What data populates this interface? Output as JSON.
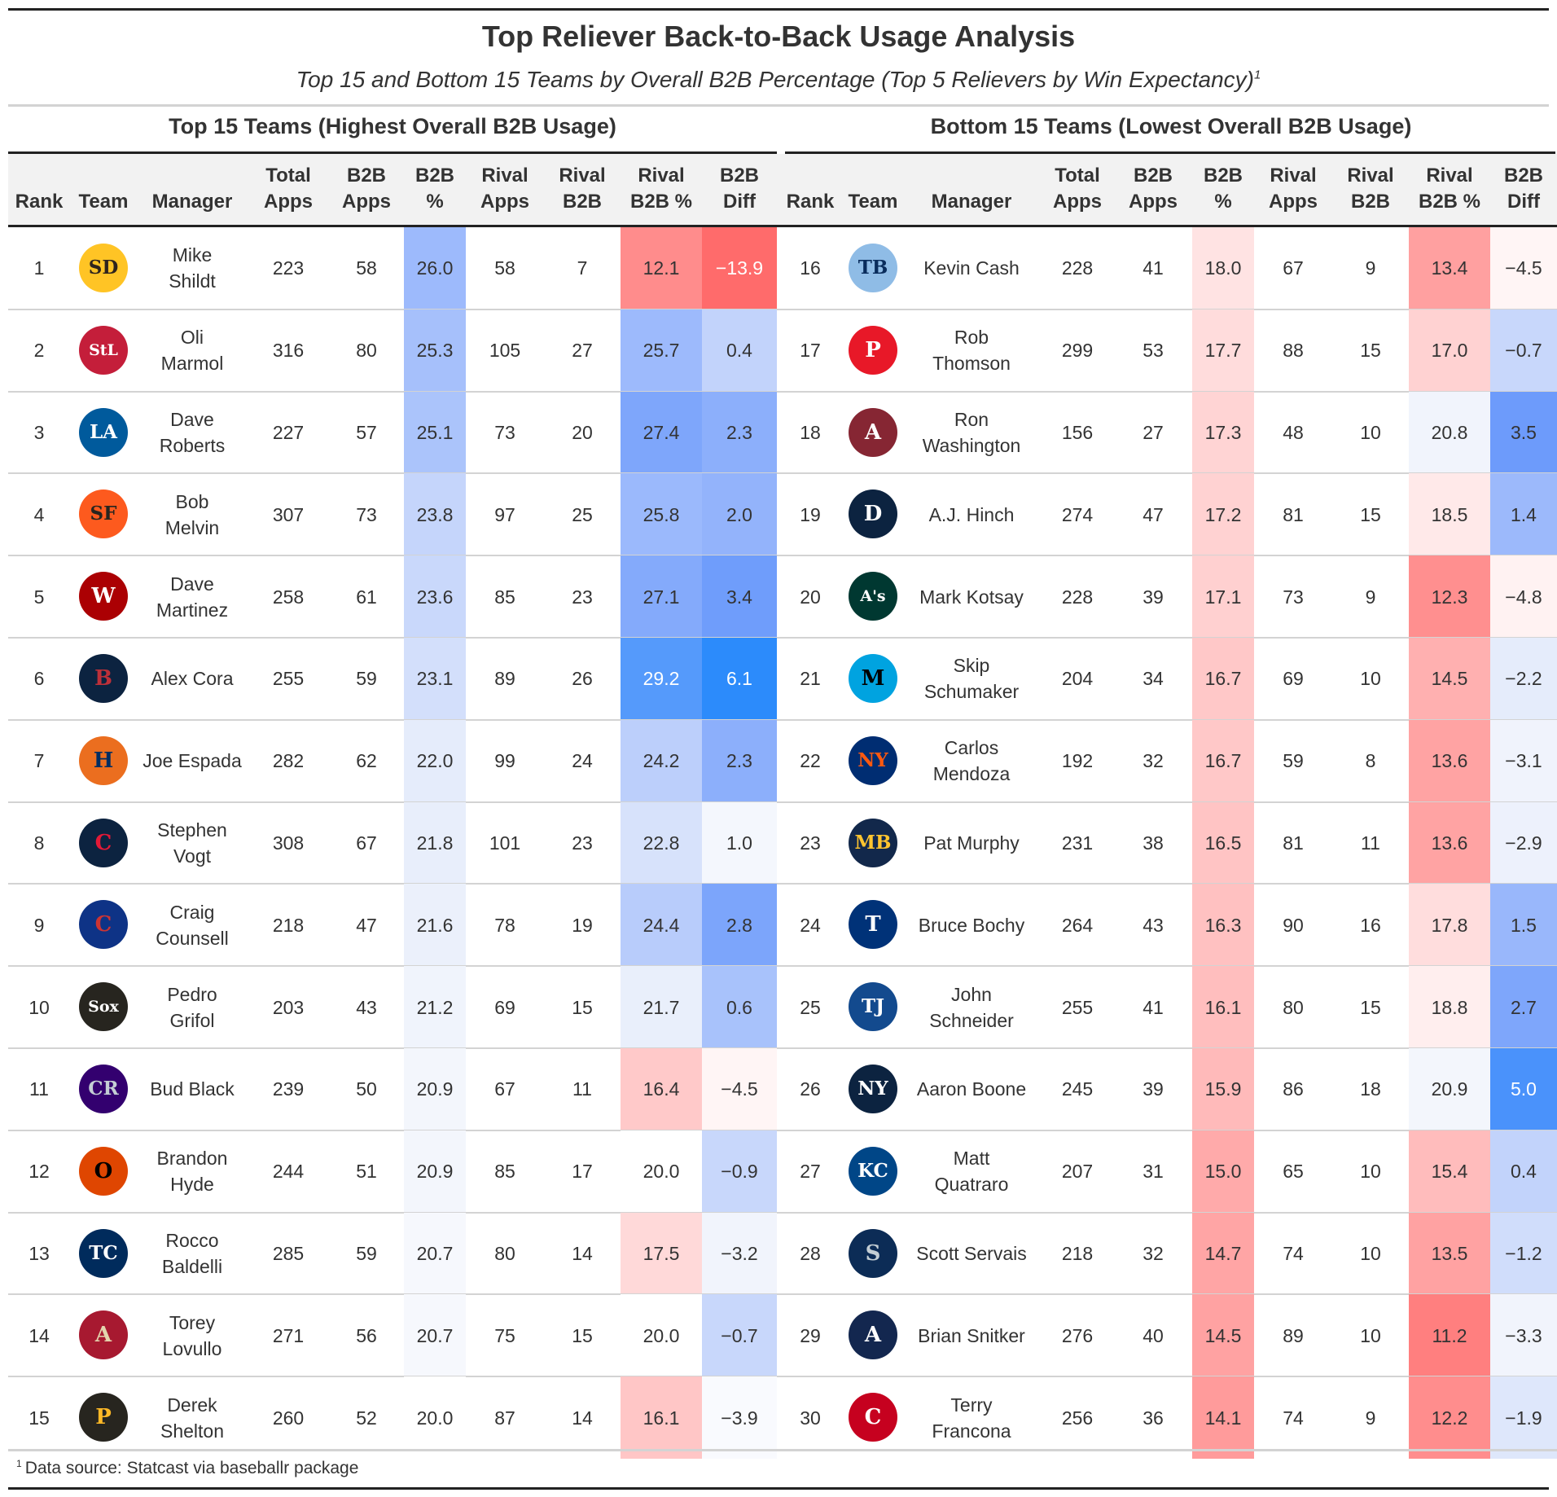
{
  "title": "Top Reliever Back-to-Back Usage Analysis",
  "subtitle": "Top 15 and Bottom 15 Teams by Overall B2B Percentage (Top 5 Relievers by Win Expectancy)",
  "subtitle_footnote_mark": "1",
  "footnote_mark": "1",
  "footnote": "Data source: Statcast via baseballr package",
  "left_spanner": "Top 15 Teams (Highest Overall B2B Usage)",
  "right_spanner": "Bottom 15 Teams (Lowest Overall B2B Usage)",
  "columns": [
    "Rank",
    "Team",
    "Manager",
    "Total Apps",
    "B2B Apps",
    "B2B %",
    "Rival Apps",
    "Rival B2B",
    "Rival B2B %",
    "B2B Diff"
  ],
  "column_headers": [
    {
      "line1": "",
      "line2": "Rank"
    },
    {
      "line1": "",
      "line2": "Team"
    },
    {
      "line1": "",
      "line2": "Manager"
    },
    {
      "line1": "Total",
      "line2": "Apps"
    },
    {
      "line1": "B2B",
      "line2": "Apps"
    },
    {
      "line1": "B2B",
      "line2": "%"
    },
    {
      "line1": "Rival",
      "line2": "Apps"
    },
    {
      "line1": "Rival",
      "line2": "B2B"
    },
    {
      "line1": "Rival",
      "line2": "B2B %"
    },
    {
      "line1": "B2B",
      "line2": "Diff"
    }
  ],
  "top_teams": [
    {
      "rank": "1",
      "logo": {
        "icon": "padres-logo",
        "text": "SD",
        "bg": "#FFC425",
        "fg": "#2F241D"
      },
      "manager": [
        "Mike",
        "Shildt"
      ],
      "total_apps": "223",
      "b2b_apps": "58",
      "b2b_pct": "26.0",
      "rival_apps": "58",
      "rival_b2b": "7",
      "rival_b2b_pct": "12.1",
      "b2b_diff": "−13.9",
      "b2b_pct_color": "#9DBAFC",
      "rival_pct_color": "#FF8C8C",
      "diff_color": "#FF6B6B"
    },
    {
      "rank": "2",
      "logo": {
        "icon": "cardinals-logo",
        "text": "StL",
        "bg": "#C41E3A",
        "fg": "#ffffff"
      },
      "manager": [
        "Oli",
        "Marmol"
      ],
      "total_apps": "316",
      "b2b_apps": "80",
      "b2b_pct": "25.3",
      "rival_apps": "105",
      "rival_b2b": "27",
      "rival_b2b_pct": "25.7",
      "b2b_diff": "0.4",
      "b2b_pct_color": "#A6C0FB",
      "rival_pct_color": "#9DBAFC",
      "diff_color": "#C2D3FB"
    },
    {
      "rank": "3",
      "logo": {
        "icon": "dodgers-logo",
        "text": "LA",
        "bg": "#005A9C",
        "fg": "#ffffff"
      },
      "manager": [
        "Dave",
        "Roberts"
      ],
      "total_apps": "227",
      "b2b_apps": "57",
      "b2b_pct": "25.1",
      "rival_apps": "73",
      "rival_b2b": "20",
      "rival_b2b_pct": "27.4",
      "b2b_diff": "2.3",
      "b2b_pct_color": "#ABC4FB",
      "rival_pct_color": "#7EA6FB",
      "diff_color": "#8CAFFB"
    },
    {
      "rank": "4",
      "logo": {
        "icon": "giants-logo",
        "text": "SF",
        "bg": "#FD5A1E",
        "fg": "#27251F"
      },
      "manager": [
        "Bob",
        "Melvin"
      ],
      "total_apps": "307",
      "b2b_apps": "73",
      "b2b_pct": "23.8",
      "rival_apps": "97",
      "rival_b2b": "25",
      "rival_b2b_pct": "25.8",
      "b2b_diff": "2.0",
      "b2b_pct_color": "#C5D5FB",
      "rival_pct_color": "#9BB9FC",
      "diff_color": "#93B3FB"
    },
    {
      "rank": "5",
      "logo": {
        "icon": "nationals-logo",
        "text": "W",
        "bg": "#AB0003",
        "fg": "#ffffff"
      },
      "manager": [
        "Dave",
        "Martinez"
      ],
      "total_apps": "258",
      "b2b_apps": "61",
      "b2b_pct": "23.6",
      "rival_apps": "85",
      "rival_b2b": "23",
      "rival_b2b_pct": "27.1",
      "b2b_diff": "3.4",
      "b2b_pct_color": "#C9D8FB",
      "rival_pct_color": "#84AAFB",
      "diff_color": "#6F9DFB"
    },
    {
      "rank": "6",
      "logo": {
        "icon": "red-sox-logo",
        "text": "B",
        "bg": "#0C2340",
        "fg": "#BD3039"
      },
      "manager": [
        "Alex Cora"
      ],
      "total_apps": "255",
      "b2b_apps": "59",
      "b2b_pct": "23.1",
      "rival_apps": "89",
      "rival_b2b": "26",
      "rival_b2b_pct": "29.2",
      "b2b_diff": "6.1",
      "b2b_pct_color": "#D3DFFB",
      "rival_pct_color": "#559AFB",
      "diff_color": "#2C8BFB"
    },
    {
      "rank": "7",
      "logo": {
        "icon": "astros-logo",
        "text": "H",
        "bg": "#EB6E1F",
        "fg": "#002D62"
      },
      "manager": [
        "Joe Espada"
      ],
      "total_apps": "282",
      "b2b_apps": "62",
      "b2b_pct": "22.0",
      "rival_apps": "99",
      "rival_b2b": "24",
      "rival_b2b_pct": "24.2",
      "b2b_diff": "2.3",
      "b2b_pct_color": "#E5ECFB",
      "rival_pct_color": "#BCCFFB",
      "diff_color": "#8CAFFB"
    },
    {
      "rank": "8",
      "logo": {
        "icon": "guardians-logo",
        "text": "C",
        "bg": "#0C2340",
        "fg": "#E31937"
      },
      "manager": [
        "Stephen",
        "Vogt"
      ],
      "total_apps": "308",
      "b2b_apps": "67",
      "b2b_pct": "21.8",
      "rival_apps": "101",
      "rival_b2b": "23",
      "rival_b2b_pct": "22.8",
      "b2b_diff": "1.0",
      "b2b_pct_color": "#E8EEFB",
      "rival_pct_color": "#D7E2FB",
      "diff_color": "#F4F7FD"
    },
    {
      "rank": "9",
      "logo": {
        "icon": "cubs-logo",
        "text": "C",
        "bg": "#0E3386",
        "fg": "#CC3433"
      },
      "manager": [
        "Craig",
        "Counsell"
      ],
      "total_apps": "218",
      "b2b_apps": "47",
      "b2b_pct": "21.6",
      "rival_apps": "78",
      "rival_b2b": "19",
      "rival_b2b_pct": "24.4",
      "b2b_diff": "2.8",
      "b2b_pct_color": "#EBF0FB",
      "rival_pct_color": "#B8CCFB",
      "diff_color": "#7CA5FB"
    },
    {
      "rank": "10",
      "logo": {
        "icon": "white-sox-logo",
        "text": "Sox",
        "bg": "#27251F",
        "fg": "#ffffff"
      },
      "manager": [
        "Pedro",
        "Grifol"
      ],
      "total_apps": "203",
      "b2b_apps": "43",
      "b2b_pct": "21.2",
      "rival_apps": "69",
      "rival_b2b": "15",
      "rival_b2b_pct": "21.7",
      "b2b_diff": "0.6",
      "b2b_pct_color": "#F0F4FC",
      "rival_pct_color": "#E9EFFB",
      "diff_color": "#A8C2FB"
    },
    {
      "rank": "11",
      "logo": {
        "icon": "rockies-logo",
        "text": "CR",
        "bg": "#33006F",
        "fg": "#C4CED4"
      },
      "manager": [
        "Bud Black"
      ],
      "total_apps": "239",
      "b2b_apps": "50",
      "b2b_pct": "20.9",
      "rival_apps": "67",
      "rival_b2b": "11",
      "rival_b2b_pct": "16.4",
      "b2b_diff": "−4.5",
      "b2b_pct_color": "#F3F6FC",
      "rival_pct_color": "#FFC9C9",
      "diff_color": "#FFF5F5"
    },
    {
      "rank": "12",
      "logo": {
        "icon": "orioles-logo",
        "text": "O",
        "bg": "#DF4601",
        "fg": "#000000"
      },
      "manager": [
        "Brandon",
        "Hyde"
      ],
      "total_apps": "244",
      "b2b_apps": "51",
      "b2b_pct": "20.9",
      "rival_apps": "85",
      "rival_b2b": "17",
      "rival_b2b_pct": "20.0",
      "b2b_diff": "−0.9",
      "b2b_pct_color": "#F3F6FC",
      "rival_pct_color": "#FFFFFF",
      "diff_color": "#C8D7FB"
    },
    {
      "rank": "13",
      "logo": {
        "icon": "twins-logo",
        "text": "TC",
        "bg": "#002B5C",
        "fg": "#ffffff"
      },
      "manager": [
        "Rocco",
        "Baldelli"
      ],
      "total_apps": "285",
      "b2b_apps": "59",
      "b2b_pct": "20.7",
      "rival_apps": "80",
      "rival_b2b": "14",
      "rival_b2b_pct": "17.5",
      "b2b_diff": "−3.2",
      "b2b_pct_color": "#F6F8FD",
      "rival_pct_color": "#FFD9D9",
      "diff_color": "#F1F4FC"
    },
    {
      "rank": "14",
      "logo": {
        "icon": "diamondbacks-logo",
        "text": "A",
        "bg": "#A71930",
        "fg": "#E3D4AD"
      },
      "manager": [
        "Torey",
        "Lovullo"
      ],
      "total_apps": "271",
      "b2b_apps": "56",
      "b2b_pct": "20.7",
      "rival_apps": "75",
      "rival_b2b": "15",
      "rival_b2b_pct": "20.0",
      "b2b_diff": "−0.7",
      "b2b_pct_color": "#F6F8FD",
      "rival_pct_color": "#FFFFFF",
      "diff_color": "#C8D7FB"
    },
    {
      "rank": "15",
      "logo": {
        "icon": "pirates-logo",
        "text": "P",
        "bg": "#27251F",
        "fg": "#FDB827"
      },
      "manager": [
        "Derek",
        "Shelton"
      ],
      "total_apps": "260",
      "b2b_apps": "52",
      "b2b_pct": "20.0",
      "rival_apps": "87",
      "rival_b2b": "14",
      "rival_b2b_pct": "16.1",
      "b2b_diff": "−3.9",
      "b2b_pct_color": "#FFFFFF",
      "rival_pct_color": "#FFC6C6",
      "diff_color": "#F9FAFE"
    }
  ],
  "bottom_teams": [
    {
      "rank": "16",
      "logo": {
        "icon": "rays-logo",
        "text": "TB",
        "bg": "#8FBCE6",
        "fg": "#092C5C"
      },
      "manager": [
        "Kevin Cash"
      ],
      "total_apps": "228",
      "b2b_apps": "41",
      "b2b_pct": "18.0",
      "rival_apps": "67",
      "rival_b2b": "9",
      "rival_b2b_pct": "13.4",
      "b2b_diff": "−4.5",
      "b2b_pct_color": "#FFE3E3",
      "rival_pct_color": "#FFA0A0",
      "diff_color": "#FFF5F5"
    },
    {
      "rank": "17",
      "logo": {
        "icon": "phillies-logo",
        "text": "P",
        "bg": "#E81828",
        "fg": "#ffffff"
      },
      "manager": [
        "Rob",
        "Thomson"
      ],
      "total_apps": "299",
      "b2b_apps": "53",
      "b2b_pct": "17.7",
      "rival_apps": "88",
      "rival_b2b": "15",
      "rival_b2b_pct": "17.0",
      "b2b_diff": "−0.7",
      "b2b_pct_color": "#FFDCDC",
      "rival_pct_color": "#FFD2D2",
      "diff_color": "#C8D7FB"
    },
    {
      "rank": "18",
      "logo": {
        "icon": "angels-logo",
        "text": "A",
        "bg": "#862633",
        "fg": "#ffffff"
      },
      "manager": [
        "Ron",
        "Washington"
      ],
      "total_apps": "156",
      "b2b_apps": "27",
      "b2b_pct": "17.3",
      "rival_apps": "48",
      "rival_b2b": "10",
      "rival_b2b_pct": "20.8",
      "b2b_diff": "3.5",
      "b2b_pct_color": "#FFD4D4",
      "rival_pct_color": "#F1F4FC",
      "diff_color": "#6D9BFB"
    },
    {
      "rank": "19",
      "logo": {
        "icon": "tigers-logo",
        "text": "D",
        "bg": "#0C2340",
        "fg": "#ffffff"
      },
      "manager": [
        "A.J. Hinch"
      ],
      "total_apps": "274",
      "b2b_apps": "47",
      "b2b_pct": "17.2",
      "rival_apps": "81",
      "rival_b2b": "15",
      "rival_b2b_pct": "18.5",
      "b2b_diff": "1.4",
      "b2b_pct_color": "#FFD2D2",
      "rival_pct_color": "#FFE9E9",
      "diff_color": "#9CB9FB"
    },
    {
      "rank": "20",
      "logo": {
        "icon": "athletics-logo",
        "text": "A's",
        "bg": "#003831",
        "fg": "#ffffff"
      },
      "manager": [
        "Mark Kotsay"
      ],
      "total_apps": "228",
      "b2b_apps": "39",
      "b2b_pct": "17.1",
      "rival_apps": "73",
      "rival_b2b": "9",
      "rival_b2b_pct": "12.3",
      "b2b_diff": "−4.8",
      "b2b_pct_color": "#FFD0D0",
      "rival_pct_color": "#FF8F8F",
      "diff_color": "#FFF2F2"
    },
    {
      "rank": "21",
      "logo": {
        "icon": "marlins-logo",
        "text": "M",
        "bg": "#00A3E0",
        "fg": "#000000"
      },
      "manager": [
        "Skip",
        "Schumaker"
      ],
      "total_apps": "204",
      "b2b_apps": "34",
      "b2b_pct": "16.7",
      "rival_apps": "69",
      "rival_b2b": "10",
      "rival_b2b_pct": "14.5",
      "b2b_diff": "−2.2",
      "b2b_pct_color": "#FFC8C8",
      "rival_pct_color": "#FFB0B0",
      "diff_color": "#E5ECFB"
    },
    {
      "rank": "22",
      "logo": {
        "icon": "mets-logo",
        "text": "NY",
        "bg": "#002D72",
        "fg": "#FF5910"
      },
      "manager": [
        "Carlos",
        "Mendoza"
      ],
      "total_apps": "192",
      "b2b_apps": "32",
      "b2b_pct": "16.7",
      "rival_apps": "59",
      "rival_b2b": "8",
      "rival_b2b_pct": "13.6",
      "b2b_diff": "−3.1",
      "b2b_pct_color": "#FFC8C8",
      "rival_pct_color": "#FFA3A3",
      "diff_color": "#F0F3FC"
    },
    {
      "rank": "23",
      "logo": {
        "icon": "brewers-logo",
        "text": "MB",
        "bg": "#12284B",
        "fg": "#FFC52F"
      },
      "manager": [
        "Pat Murphy"
      ],
      "total_apps": "231",
      "b2b_apps": "38",
      "b2b_pct": "16.5",
      "rival_apps": "81",
      "rival_b2b": "11",
      "rival_b2b_pct": "13.6",
      "b2b_diff": "−2.9",
      "b2b_pct_color": "#FFC4C4",
      "rival_pct_color": "#FFA3A3",
      "diff_color": "#EDF1FC"
    },
    {
      "rank": "24",
      "logo": {
        "icon": "rangers-logo",
        "text": "T",
        "bg": "#003278",
        "fg": "#ffffff"
      },
      "manager": [
        "Bruce Bochy"
      ],
      "total_apps": "264",
      "b2b_apps": "43",
      "b2b_pct": "16.3",
      "rival_apps": "90",
      "rival_b2b": "16",
      "rival_b2b_pct": "17.8",
      "b2b_diff": "1.5",
      "b2b_pct_color": "#FFC1C1",
      "rival_pct_color": "#FFDDDD",
      "diff_color": "#99B7FB"
    },
    {
      "rank": "25",
      "logo": {
        "icon": "blue-jays-logo",
        "text": "TJ",
        "bg": "#134A8E",
        "fg": "#ffffff"
      },
      "manager": [
        "John",
        "Schneider"
      ],
      "total_apps": "255",
      "b2b_apps": "41",
      "b2b_pct": "16.1",
      "rival_apps": "80",
      "rival_b2b": "15",
      "rival_b2b_pct": "18.8",
      "b2b_diff": "2.7",
      "b2b_pct_color": "#FFBEBE",
      "rival_pct_color": "#FFEEEE",
      "diff_color": "#7EA6FB"
    },
    {
      "rank": "26",
      "logo": {
        "icon": "yankees-logo",
        "text": "NY",
        "bg": "#0C2340",
        "fg": "#ffffff"
      },
      "manager": [
        "Aaron Boone"
      ],
      "total_apps": "245",
      "b2b_apps": "39",
      "b2b_pct": "15.9",
      "rival_apps": "86",
      "rival_b2b": "18",
      "rival_b2b_pct": "20.9",
      "b2b_diff": "5.0",
      "b2b_pct_color": "#FFBABA",
      "rival_pct_color": "#F3F6FC",
      "diff_color": "#4A92FB"
    },
    {
      "rank": "27",
      "logo": {
        "icon": "royals-logo",
        "text": "KC",
        "bg": "#004687",
        "fg": "#ffffff"
      },
      "manager": [
        "Matt",
        "Quatraro"
      ],
      "total_apps": "207",
      "b2b_apps": "31",
      "b2b_pct": "15.0",
      "rival_apps": "65",
      "rival_b2b": "10",
      "rival_b2b_pct": "15.4",
      "b2b_diff": "0.4",
      "b2b_pct_color": "#FFAAAA",
      "rival_pct_color": "#FFBCBC",
      "diff_color": "#C2D3FB"
    },
    {
      "rank": "28",
      "logo": {
        "icon": "mariners-logo",
        "text": "S",
        "bg": "#0C2C56",
        "fg": "#C4CED4"
      },
      "manager": [
        "Scott Servais"
      ],
      "total_apps": "218",
      "b2b_apps": "32",
      "b2b_pct": "14.7",
      "rival_apps": "74",
      "rival_b2b": "10",
      "rival_b2b_pct": "13.5",
      "b2b_diff": "−1.2",
      "b2b_pct_color": "#FFA5A5",
      "rival_pct_color": "#FFA2A2",
      "diff_color": "#D0DDFB"
    },
    {
      "rank": "29",
      "logo": {
        "icon": "braves-logo",
        "text": "A",
        "bg": "#13274F",
        "fg": "#ffffff"
      },
      "manager": [
        "Brian Snitker"
      ],
      "total_apps": "276",
      "b2b_apps": "40",
      "b2b_pct": "14.5",
      "rival_apps": "89",
      "rival_b2b": "10",
      "rival_b2b_pct": "11.2",
      "b2b_diff": "−3.3",
      "b2b_pct_color": "#FFA2A2",
      "rival_pct_color": "#FF7F7F",
      "diff_color": "#F1F4FC"
    },
    {
      "rank": "30",
      "logo": {
        "icon": "reds-logo",
        "text": "C",
        "bg": "#C6011F",
        "fg": "#ffffff"
      },
      "manager": [
        "Terry",
        "Francona"
      ],
      "total_apps": "256",
      "b2b_apps": "36",
      "b2b_pct": "14.1",
      "rival_apps": "74",
      "rival_b2b": "9",
      "rival_b2b_pct": "12.2",
      "b2b_diff": "−1.9",
      "b2b_pct_color": "#FF9B9B",
      "rival_pct_color": "#FF8D8D",
      "diff_color": "#DEE7FB"
    }
  ]
}
